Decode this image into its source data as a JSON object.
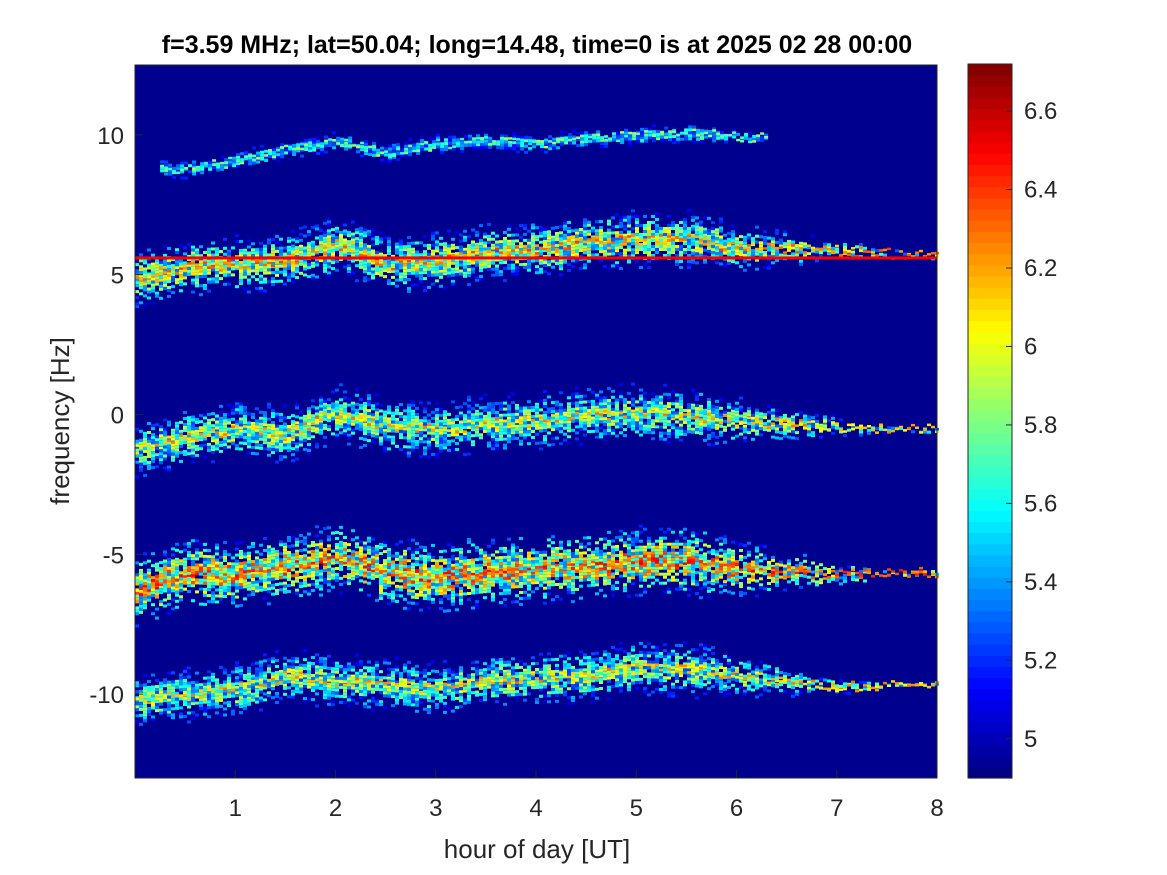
{
  "chart_data": {
    "type": "heatmap",
    "title": "f=3.59 MHz;  lat=50.04; long=14.48, time=0 is at 2025 02 28 00:00",
    "xlabel": "hour of day [UT]",
    "ylabel": "frequency [Hz]",
    "xlim": [
      0,
      8
    ],
    "ylim": [
      -13,
      12.5
    ],
    "x_ticks": [
      1,
      2,
      3,
      4,
      5,
      6,
      7,
      8
    ],
    "y_ticks": [
      -10,
      -5,
      0,
      5,
      10
    ],
    "colorbar": {
      "range": [
        4.9,
        6.72
      ],
      "ticks": [
        5,
        5.2,
        5.4,
        5.6,
        5.8,
        6,
        6.2,
        6.4,
        6.6
      ],
      "colormap": "jet"
    },
    "background_color": "#00008f",
    "bands": [
      {
        "center": [
          [
            0,
            8.9
          ],
          [
            0.5,
            8.8
          ],
          [
            1,
            9.1
          ],
          [
            1.5,
            9.5
          ],
          [
            2,
            9.8
          ],
          [
            2.5,
            9.4
          ],
          [
            3,
            9.7
          ],
          [
            3.5,
            9.8
          ],
          [
            4,
            9.7
          ],
          [
            4.5,
            9.9
          ],
          [
            5,
            10.0
          ],
          [
            5.5,
            10.1
          ],
          [
            6,
            10.0
          ],
          [
            6.3,
            9.9
          ]
        ],
        "spread": 0.25,
        "intensity": 5.6,
        "trace_intensity": 5.9,
        "x_range": [
          0.25,
          6.3
        ]
      },
      {
        "center": [
          [
            0,
            4.9
          ],
          [
            0.5,
            5.3
          ],
          [
            1,
            5.4
          ],
          [
            1.5,
            5.5
          ],
          [
            2,
            6.1
          ],
          [
            2.5,
            5.4
          ],
          [
            3,
            5.5
          ],
          [
            3.5,
            5.8
          ],
          [
            4,
            5.9
          ],
          [
            4.5,
            6.2
          ],
          [
            5,
            6.3
          ],
          [
            5.5,
            6.3
          ],
          [
            6,
            6.0
          ],
          [
            7,
            5.9
          ],
          [
            8,
            5.7
          ]
        ],
        "spread": 0.75,
        "intensity": 6.0,
        "trace_intensity": 6.4,
        "x_range": [
          0,
          8
        ]
      },
      {
        "center": [
          [
            0,
            -1.2
          ],
          [
            0.5,
            -0.8
          ],
          [
            1,
            -0.5
          ],
          [
            1.5,
            -0.7
          ],
          [
            2,
            0.1
          ],
          [
            2.5,
            -0.4
          ],
          [
            3,
            -0.5
          ],
          [
            3.5,
            -0.3
          ],
          [
            4,
            -0.2
          ],
          [
            4.5,
            0.0
          ],
          [
            5,
            0.1
          ],
          [
            5.5,
            0.0
          ],
          [
            6,
            -0.2
          ],
          [
            7,
            -0.4
          ],
          [
            8,
            -0.5
          ]
        ],
        "spread": 0.75,
        "intensity": 5.9,
        "trace_intensity": 6.3,
        "x_range": [
          0,
          8
        ]
      },
      {
        "center": [
          [
            0,
            -6.3
          ],
          [
            0.5,
            -5.6
          ],
          [
            1,
            -5.7
          ],
          [
            1.5,
            -5.4
          ],
          [
            2,
            -5.1
          ],
          [
            2.5,
            -5.6
          ],
          [
            3,
            -5.8
          ],
          [
            3.5,
            -5.6
          ],
          [
            4,
            -5.5
          ],
          [
            4.5,
            -5.4
          ],
          [
            5,
            -5.2
          ],
          [
            5.5,
            -5.2
          ],
          [
            6,
            -5.5
          ],
          [
            7,
            -5.7
          ],
          [
            8,
            -5.6
          ]
        ],
        "spread": 0.9,
        "intensity": 6.2,
        "trace_intensity": 6.5,
        "x_range": [
          0,
          8
        ]
      },
      {
        "center": [
          [
            0,
            -10.2
          ],
          [
            0.5,
            -10.0
          ],
          [
            1,
            -9.8
          ],
          [
            1.5,
            -9.3
          ],
          [
            2,
            -9.5
          ],
          [
            2.5,
            -9.6
          ],
          [
            3,
            -9.8
          ],
          [
            3.5,
            -9.5
          ],
          [
            4,
            -9.4
          ],
          [
            4.5,
            -9.3
          ],
          [
            5,
            -9.0
          ],
          [
            5.5,
            -9.1
          ],
          [
            6,
            -9.3
          ],
          [
            7,
            -9.7
          ],
          [
            8,
            -9.6
          ]
        ],
        "spread": 0.7,
        "intensity": 5.9,
        "trace_intensity": 6.3,
        "x_range": [
          0,
          8
        ]
      }
    ],
    "horizontal_lines": [
      {
        "y": 5.6,
        "x_range": [
          0,
          8
        ],
        "intensity": 6.5
      }
    ]
  }
}
